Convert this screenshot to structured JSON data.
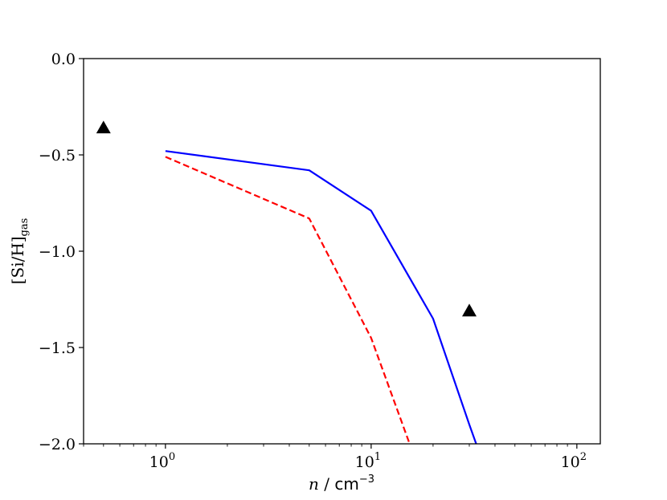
{
  "chart_data": {
    "type": "line",
    "title": "",
    "xscale": "log",
    "xlim": [
      0.4,
      130
    ],
    "ylim": [
      -2.0,
      0.0
    ],
    "x_ticks": [
      {
        "value": 1,
        "base": "10",
        "exp": "0"
      },
      {
        "value": 10,
        "base": "10",
        "exp": "1"
      },
      {
        "value": 100,
        "base": "10",
        "exp": "2"
      }
    ],
    "y_ticks": [
      {
        "value": 0.0,
        "label": "0.0"
      },
      {
        "value": -0.5,
        "label": "−0.5"
      },
      {
        "value": -1.0,
        "label": "−1.0"
      },
      {
        "value": -1.5,
        "label": "−1.5"
      },
      {
        "value": -2.0,
        "label": "−2.0"
      }
    ],
    "xlabel": {
      "var": "n",
      "sep": " / ",
      "unit": "cm",
      "unit_exp": "−3"
    },
    "ylabel": {
      "main": "[Si/H]",
      "sub": "gas"
    },
    "grid": false,
    "series": [
      {
        "style": "solid",
        "color": "#0000ff",
        "x": [
          1,
          5,
          10,
          20,
          30,
          35
        ],
        "y": [
          -0.48,
          -0.58,
          -0.79,
          -1.35,
          -1.9,
          -2.1
        ]
      },
      {
        "style": "dashed",
        "color": "#ff0000",
        "x": [
          1,
          5,
          10,
          16
        ],
        "y": [
          -0.51,
          -0.83,
          -1.45,
          -2.05
        ]
      }
    ],
    "markers": [
      {
        "shape": "triangle-up",
        "color": "#000000",
        "x": 0.5,
        "y": -0.36
      },
      {
        "shape": "triangle-up",
        "color": "#000000",
        "x": 30,
        "y": -1.31
      }
    ]
  }
}
